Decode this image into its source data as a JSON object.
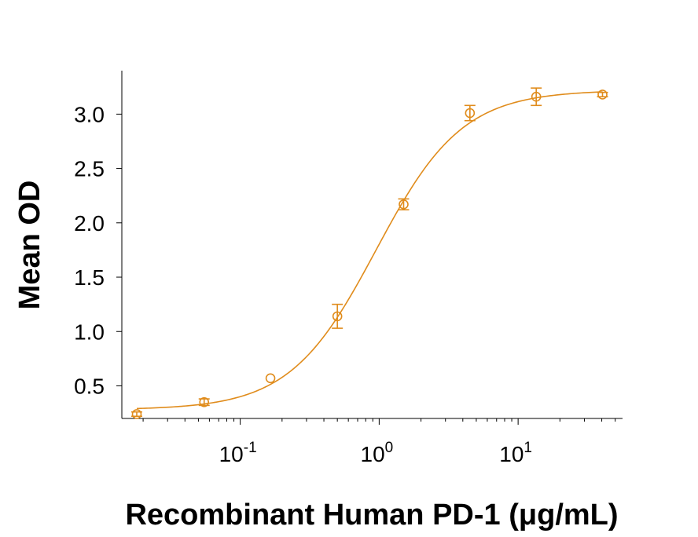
{
  "chart_data": {
    "type": "scatter",
    "title": "",
    "xlabel": "Recombinant Human PD-1 (μg/mL)",
    "ylabel": "Mean OD",
    "x_scale": "log",
    "xlim": [
      0.015,
      55
    ],
    "ylim": [
      0.2,
      3.4
    ],
    "x_tick_labels": [
      {
        "base": "10",
        "exp": "-1",
        "value": 0.1
      },
      {
        "base": "10",
        "exp": "0",
        "value": 1
      },
      {
        "base": "10",
        "exp": "1",
        "value": 10
      }
    ],
    "y_ticks": [
      0.5,
      1.0,
      1.5,
      2.0,
      2.5,
      3.0
    ],
    "y_tick_labels": [
      "0.5",
      "1.0",
      "1.5",
      "2.0",
      "2.5",
      "3.0"
    ],
    "grid": false,
    "legend": "none",
    "color": "#E08C1C",
    "series": [
      {
        "points": [
          {
            "x": 0.018,
            "y": 0.24,
            "err": 0.02
          },
          {
            "x": 0.055,
            "y": 0.35,
            "err": 0.03
          },
          {
            "x": 0.165,
            "y": 0.57,
            "err": 0.0
          },
          {
            "x": 0.5,
            "y": 1.14,
            "err": 0.11
          },
          {
            "x": 1.5,
            "y": 2.17,
            "err": 0.05
          },
          {
            "x": 4.5,
            "y": 3.01,
            "err": 0.07
          },
          {
            "x": 13.5,
            "y": 3.16,
            "err": 0.08
          },
          {
            "x": 40.5,
            "y": 3.18,
            "err": 0.02
          }
        ],
        "fit": {
          "model": "4PL",
          "bottom": 0.28,
          "top": 3.22,
          "ec50": 0.95,
          "hill": 1.4
        }
      }
    ]
  }
}
